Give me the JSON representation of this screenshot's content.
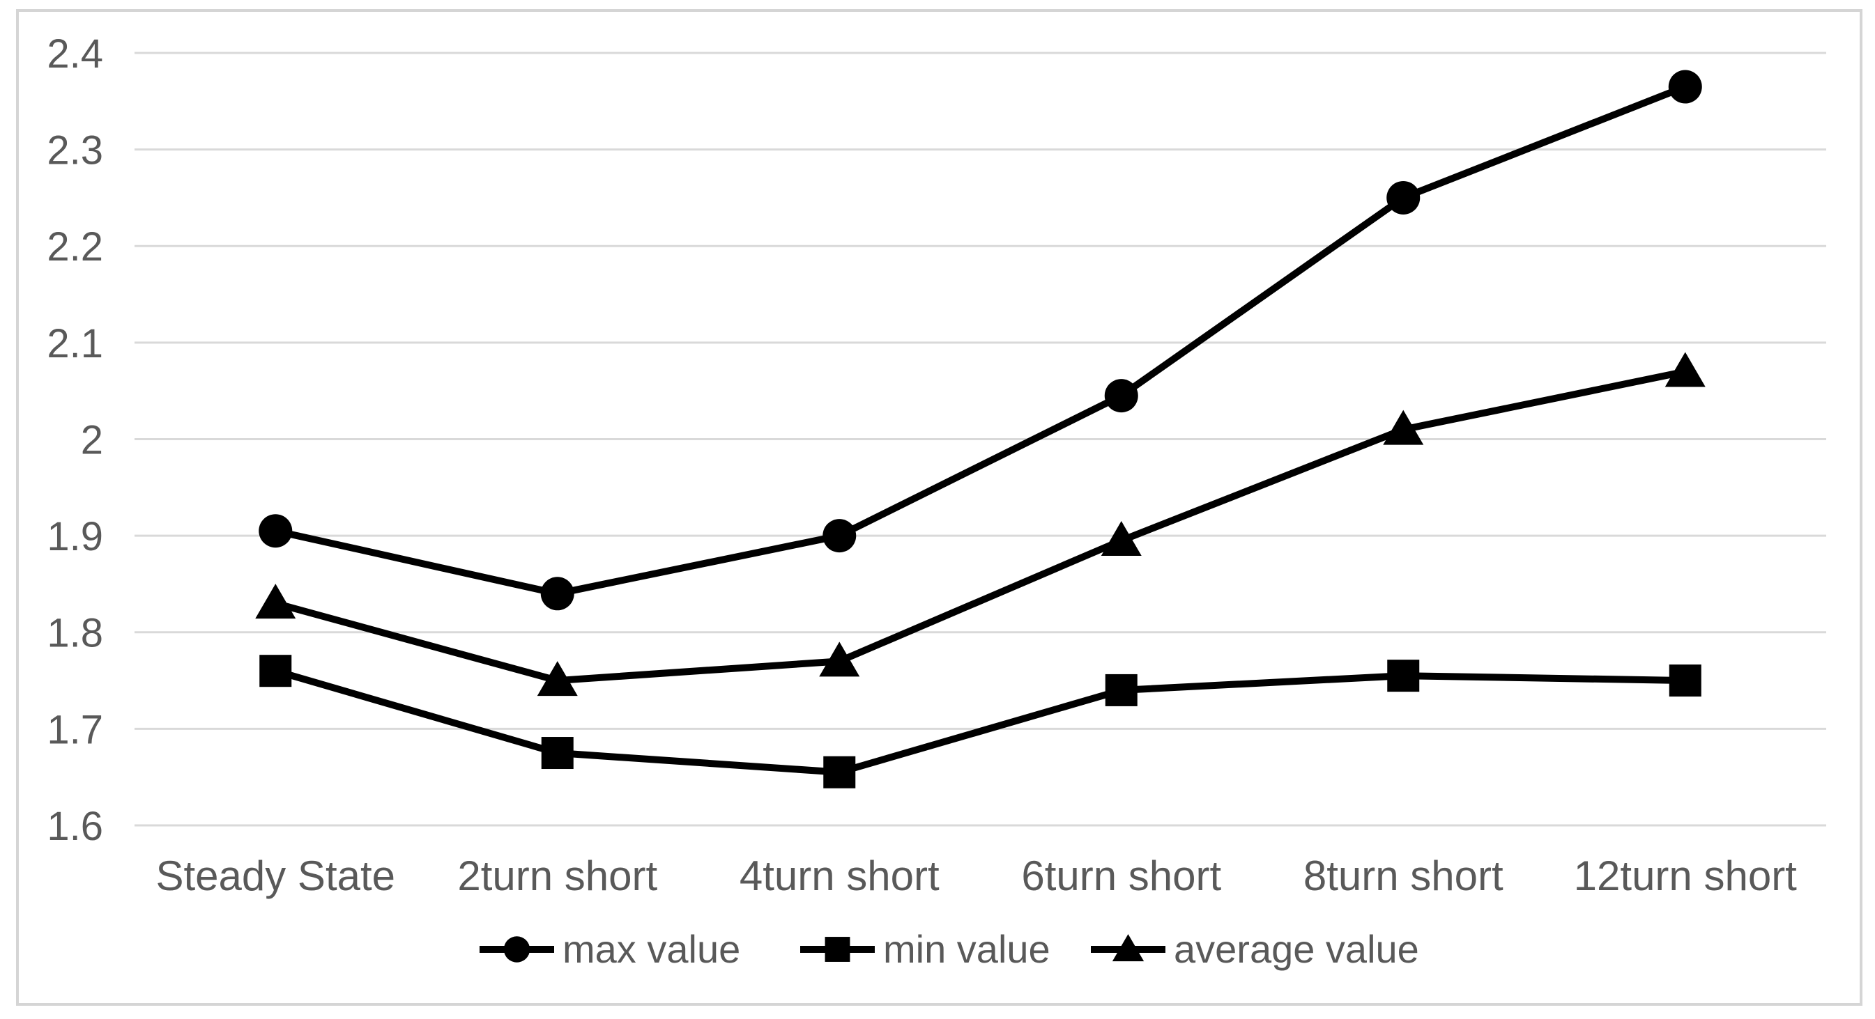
{
  "chart_data": {
    "type": "line",
    "title": "",
    "xlabel": "",
    "ylabel": "",
    "categories": [
      "Steady State",
      "2turn short",
      "4turn short",
      "6turn short",
      "8turn short",
      "12turn short"
    ],
    "series": [
      {
        "name": "max value",
        "marker": "circle",
        "values": [
          1.905,
          1.84,
          1.9,
          2.045,
          2.25,
          2.365
        ]
      },
      {
        "name": "min value",
        "marker": "square",
        "values": [
          1.76,
          1.675,
          1.655,
          1.74,
          1.755,
          1.75
        ]
      },
      {
        "name": "average value",
        "marker": "triangle",
        "values": [
          1.83,
          1.75,
          1.77,
          1.895,
          2.01,
          2.07
        ]
      }
    ],
    "ylim": [
      1.6,
      2.4
    ],
    "ytick_step": 0.1,
    "yticks": [
      {
        "v": 2.4,
        "label": "2.4"
      },
      {
        "v": 2.3,
        "label": "2.3"
      },
      {
        "v": 2.2,
        "label": "2.2"
      },
      {
        "v": 2.1,
        "label": "2.1"
      },
      {
        "v": 2.0,
        "label": "2"
      },
      {
        "v": 1.9,
        "label": "1.9"
      },
      {
        "v": 1.8,
        "label": "1.8"
      },
      {
        "v": 1.7,
        "label": "1.7"
      },
      {
        "v": 1.6,
        "label": "1.6"
      }
    ],
    "grid": "horizontal",
    "legend_position": "bottom",
    "colors": {
      "series_line": "#000000",
      "marker_fill": "#000000",
      "gridline": "#d9d9d9",
      "chart_border": "#d5d5d5",
      "tick_text": "#595959",
      "category_text": "#595959",
      "legend_text": "#595959",
      "background": "#ffffff"
    }
  }
}
